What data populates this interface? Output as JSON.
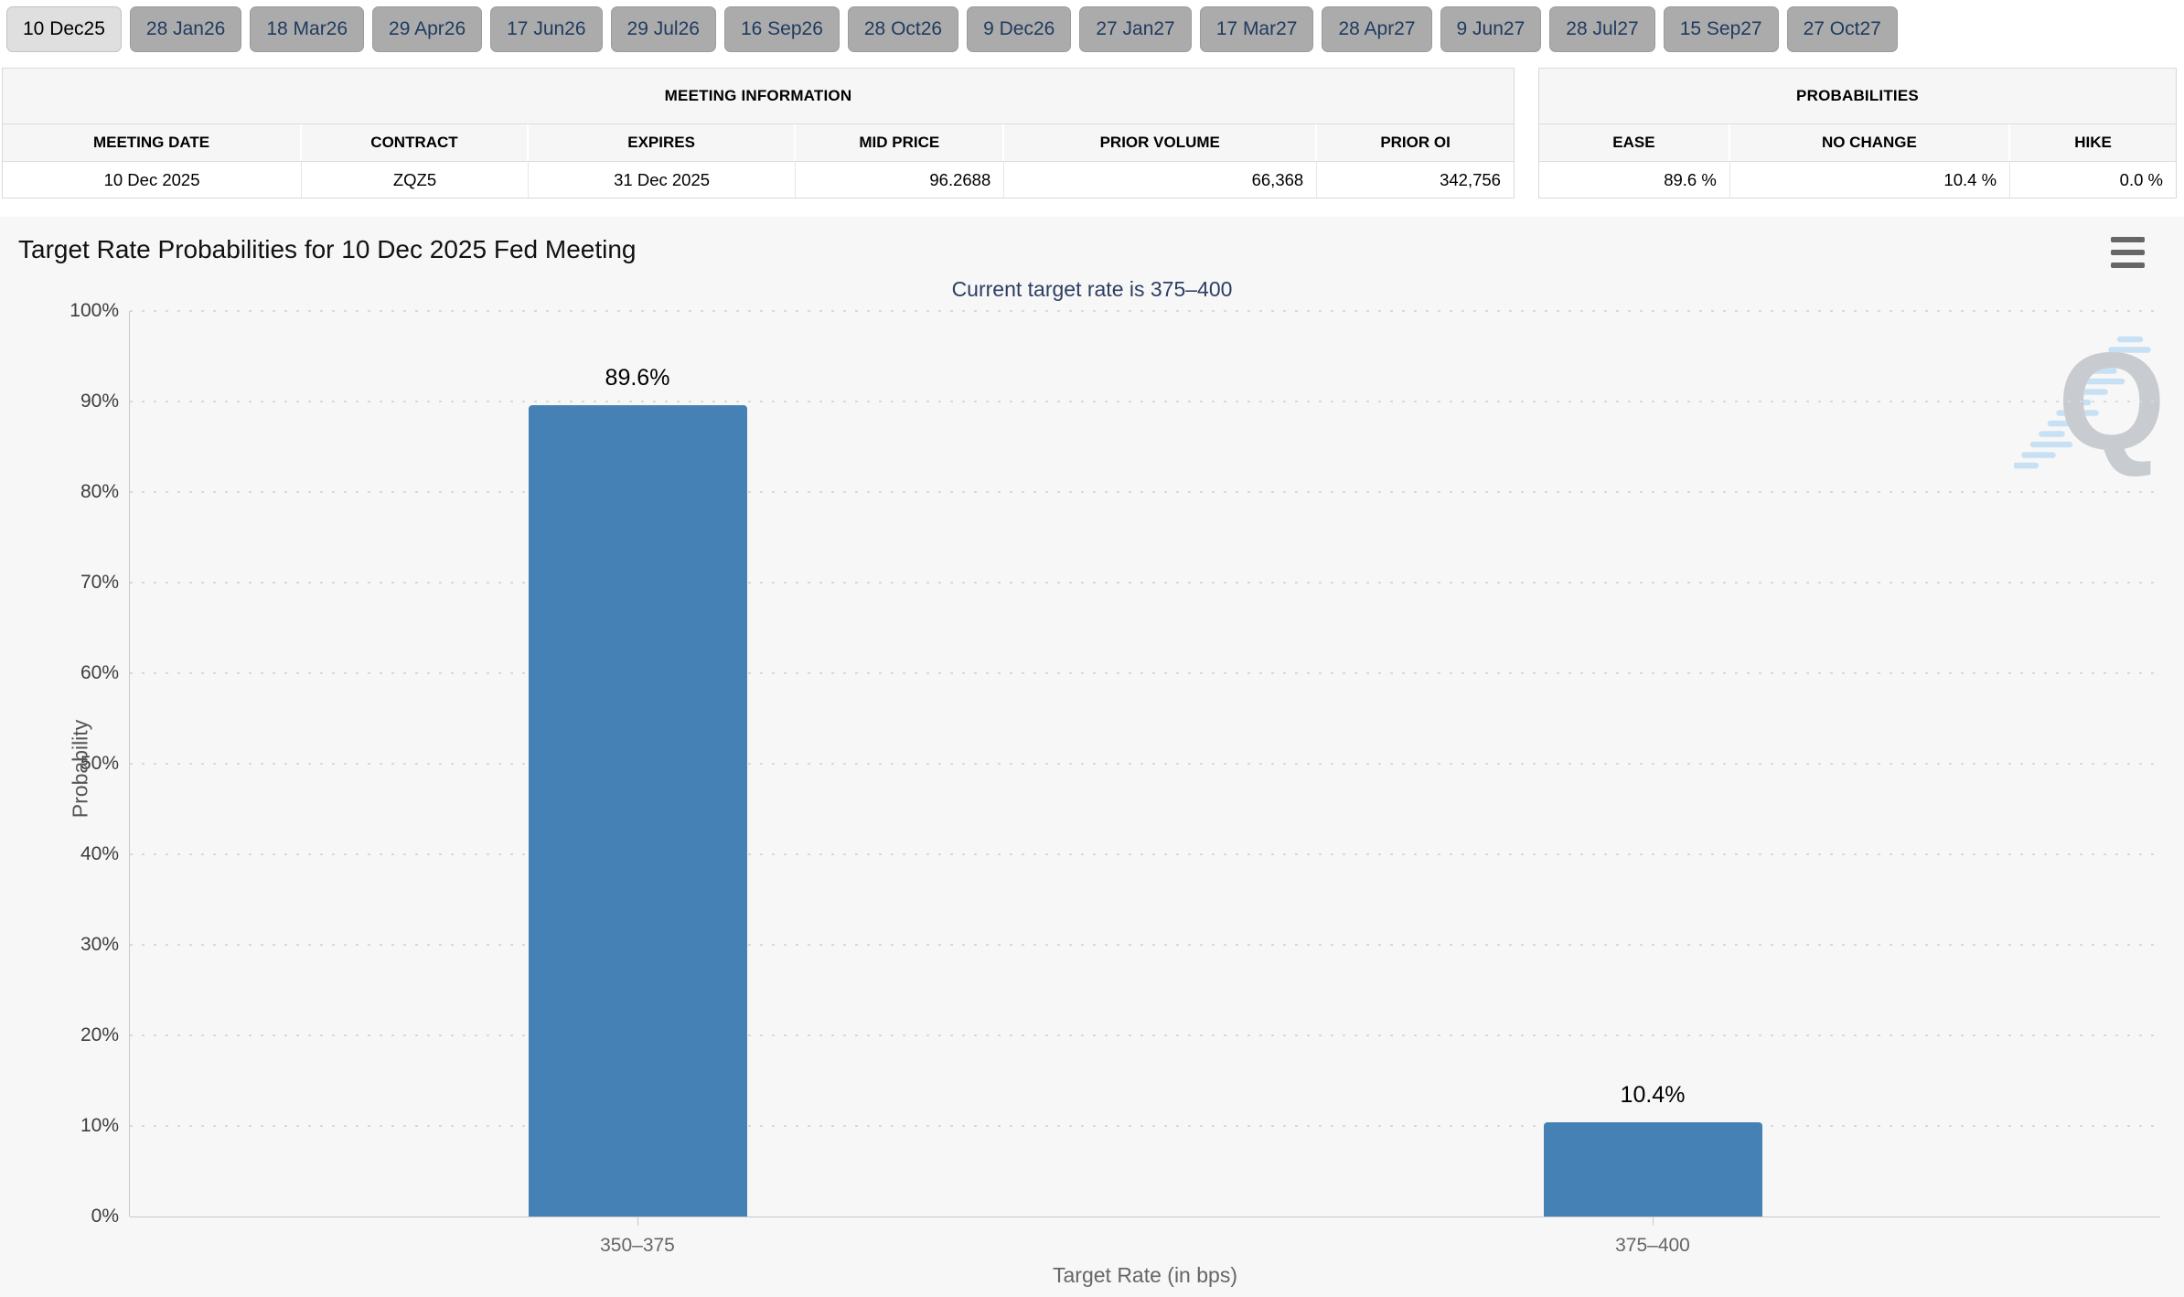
{
  "tabs": {
    "items": [
      {
        "label": "10 Dec25",
        "active": true
      },
      {
        "label": "28 Jan26",
        "active": false
      },
      {
        "label": "18 Mar26",
        "active": false
      },
      {
        "label": "29 Apr26",
        "active": false
      },
      {
        "label": "17 Jun26",
        "active": false
      },
      {
        "label": "29 Jul26",
        "active": false
      },
      {
        "label": "16 Sep26",
        "active": false
      },
      {
        "label": "28 Oct26",
        "active": false
      },
      {
        "label": "9 Dec26",
        "active": false
      },
      {
        "label": "27 Jan27",
        "active": false
      },
      {
        "label": "17 Mar27",
        "active": false
      },
      {
        "label": "28 Apr27",
        "active": false
      },
      {
        "label": "9 Jun27",
        "active": false
      },
      {
        "label": "28 Jul27",
        "active": false
      },
      {
        "label": "15 Sep27",
        "active": false
      },
      {
        "label": "27 Oct27",
        "active": false
      }
    ]
  },
  "meeting_table": {
    "caption": "MEETING INFORMATION",
    "columns": [
      "MEETING DATE",
      "CONTRACT",
      "EXPIRES",
      "MID PRICE",
      "PRIOR VOLUME",
      "PRIOR OI"
    ],
    "row": [
      "10 Dec 2025",
      "ZQZ5",
      "31 Dec 2025",
      "96.2688",
      "66,368",
      "342,756"
    ]
  },
  "probabilities_table": {
    "caption": "PROBABILITIES",
    "columns": [
      "EASE",
      "NO CHANGE",
      "HIKE"
    ],
    "row": [
      "89.6 %",
      "10.4 %",
      "0.0 %"
    ]
  },
  "chart_data": {
    "type": "bar",
    "title": "Target Rate Probabilities for 10 Dec 2025 Fed Meeting",
    "subtitle": "Current target rate is 375–400",
    "categories": [
      "350–375",
      "375–400"
    ],
    "values": [
      89.6,
      10.4
    ],
    "point_labels": [
      "89.6%",
      "10.4%"
    ],
    "xlabel": "Target Rate (in bps)",
    "ylabel": "Probability",
    "ylim": [
      0,
      100
    ],
    "ytick_step": 10,
    "ytick_suffix": "%",
    "grid": "horizontal-dotted",
    "legend": "none",
    "bar_color": "#4581b5"
  },
  "icons": {
    "chart_menu": "hamburger-icon",
    "watermark": "quikstrike-q-watermark"
  },
  "colors": {
    "bar": "#4581b5",
    "subtitle_text": "#2d3e63",
    "tab_active_bg": "#dfdfdf",
    "tab_inactive_bg": "#ababab",
    "tab_text": "#1f3a5f",
    "chart_bg": "#f7f7f7"
  }
}
